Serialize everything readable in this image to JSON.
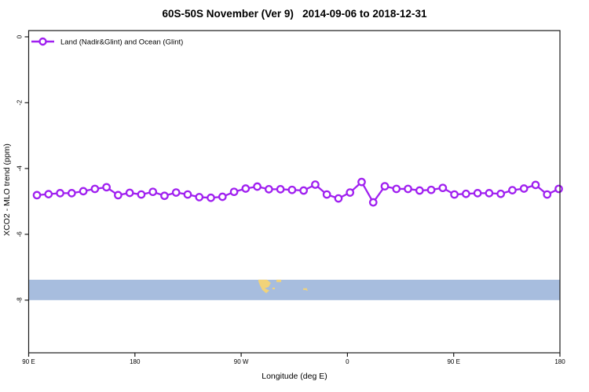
{
  "title": "60S-50S November (Ver 9)   2014-09-06 to 2018-12-31",
  "legend": {
    "label": "Land (Nadir&Glint) and Ocean (Glint)",
    "marker": "open-circle",
    "color": "#a020f0"
  },
  "colors": {
    "series": "#a020f0",
    "marker_fill": "#ffffff",
    "axis": "#1a1a1a",
    "ocean_band": "#a7bdde",
    "land": "#f2d379",
    "background": "#ffffff"
  },
  "chart_data": {
    "type": "line",
    "title": "60S-50S November (Ver 9)   2014-09-06 to 2018-12-31",
    "xlabel": "Longitude (deg E)",
    "ylabel": "XCO2 - MLO trend (ppm)",
    "grid": "off",
    "legend_position": "top-left-inside",
    "x_axis": {
      "min": 90,
      "max": 540,
      "ticks": [
        {
          "lon": 90,
          "label": "90 E"
        },
        {
          "lon": 180,
          "label": "180"
        },
        {
          "lon": 270,
          "label": "90 W"
        },
        {
          "lon": 360,
          "label": "0"
        },
        {
          "lon": 450,
          "label": "90 E"
        },
        {
          "lon": 540,
          "label": "180"
        }
      ]
    },
    "y_axis": {
      "min": -9.6,
      "max": 0.19,
      "ticks": [
        {
          "value": 0,
          "label": "0"
        },
        {
          "value": -2,
          "label": "-2"
        },
        {
          "value": -4,
          "label": "-4"
        },
        {
          "value": -6,
          "label": "-6"
        },
        {
          "value": -8,
          "label": "-8"
        }
      ]
    },
    "series": [
      {
        "name": "Land (Nadir&Glint) and Ocean (Glint)",
        "color": "#a020f0",
        "lon_first": 97,
        "lon_last": 539,
        "values": [
          -4.81,
          -4.78,
          -4.75,
          -4.75,
          -4.69,
          -4.62,
          -4.57,
          -4.81,
          -4.74,
          -4.79,
          -4.71,
          -4.83,
          -4.73,
          -4.79,
          -4.87,
          -4.89,
          -4.86,
          -4.71,
          -4.61,
          -4.55,
          -4.63,
          -4.63,
          -4.65,
          -4.67,
          -4.49,
          -4.79,
          -4.91,
          -4.73,
          -4.41,
          -5.03,
          -4.54,
          -4.62,
          -4.62,
          -4.67,
          -4.65,
          -4.59,
          -4.79,
          -4.77,
          -4.75,
          -4.75,
          -4.77,
          -4.66,
          -4.61,
          -4.5,
          -4.79,
          -4.62
        ]
      }
    ],
    "map_band": {
      "description": "world-map strip of the 60S-50S latitude band",
      "ocean_color": "#a7bdde",
      "land_color": "#f2d379",
      "value_top": -7.38,
      "value_bottom": -8.0,
      "land_polygons": [
        {
          "name": "patagonia",
          "points": [
            [
              284.6,
              -7.38
            ],
            [
              291.9,
              -7.38
            ],
            [
              295.2,
              -7.48
            ],
            [
              293.2,
              -7.6
            ],
            [
              289.9,
              -7.64
            ],
            [
              293.9,
              -7.71
            ],
            [
              291.2,
              -7.79
            ],
            [
              287.9,
              -7.69
            ],
            [
              285.9,
              -7.55
            ],
            [
              284.6,
              -7.43
            ]
          ]
        }
      ],
      "land_rects": [
        {
          "name": "patagonia-coast-specks",
          "lon": 299.9,
          "value": -7.38,
          "w_lon": 4.0,
          "h_val": 0.07
        },
        {
          "name": "falkland-islands",
          "lon": 296.5,
          "value": -7.62,
          "w_lon": 2.0,
          "h_val": 0.05
        },
        {
          "name": "south-georgia",
          "lon": 322.5,
          "value": -7.64,
          "w_lon": 3.3,
          "h_val": 0.05
        },
        {
          "name": "south-georgia-speck",
          "lon": 325.1,
          "value": -7.69,
          "w_lon": 1.3,
          "h_val": 0.02
        }
      ]
    }
  }
}
